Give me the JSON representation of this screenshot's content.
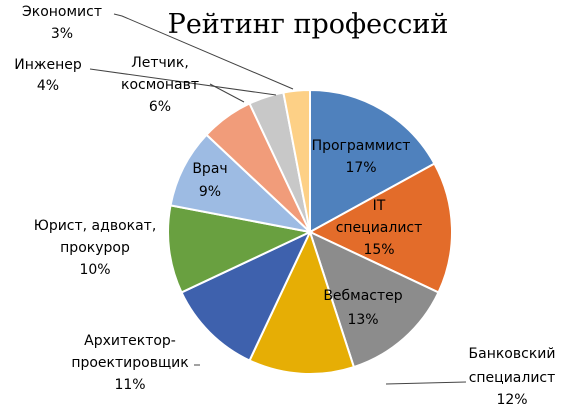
{
  "chart_data": {
    "type": "pie",
    "title": "Рейтинг профессий",
    "legend": "none",
    "slices": [
      {
        "name": "Программист",
        "value": 17,
        "label": "17%",
        "color": "#4F81BD"
      },
      {
        "name": "IT специалист",
        "value": 15,
        "label": "15%",
        "color": "#E36C2A"
      },
      {
        "name": "Вебмастер",
        "value": 13,
        "label": "13%",
        "color": "#8C8C8C"
      },
      {
        "name": "Банковский специалист",
        "value": 12,
        "label": "12%",
        "color": "#E6AE05"
      },
      {
        "name": "Архитектор-проектировщик",
        "value": 11,
        "label": "11%",
        "color": "#3E61AD"
      },
      {
        "name": "Юрист, адвокат, прокурор",
        "value": 10,
        "label": "10%",
        "color": "#69A040"
      },
      {
        "name": "Врач",
        "value": 9,
        "label": "9%",
        "color": "#9DBBE3"
      },
      {
        "name": "Летчик, космонавт",
        "value": 6,
        "label": "6%",
        "color": "#F19C7A"
      },
      {
        "name": "Инженер",
        "value": 4,
        "label": "4%",
        "color": "#C8C8C8"
      },
      {
        "name": "Экономист",
        "value": 3,
        "label": "3%",
        "color": "#FDD086"
      }
    ]
  }
}
